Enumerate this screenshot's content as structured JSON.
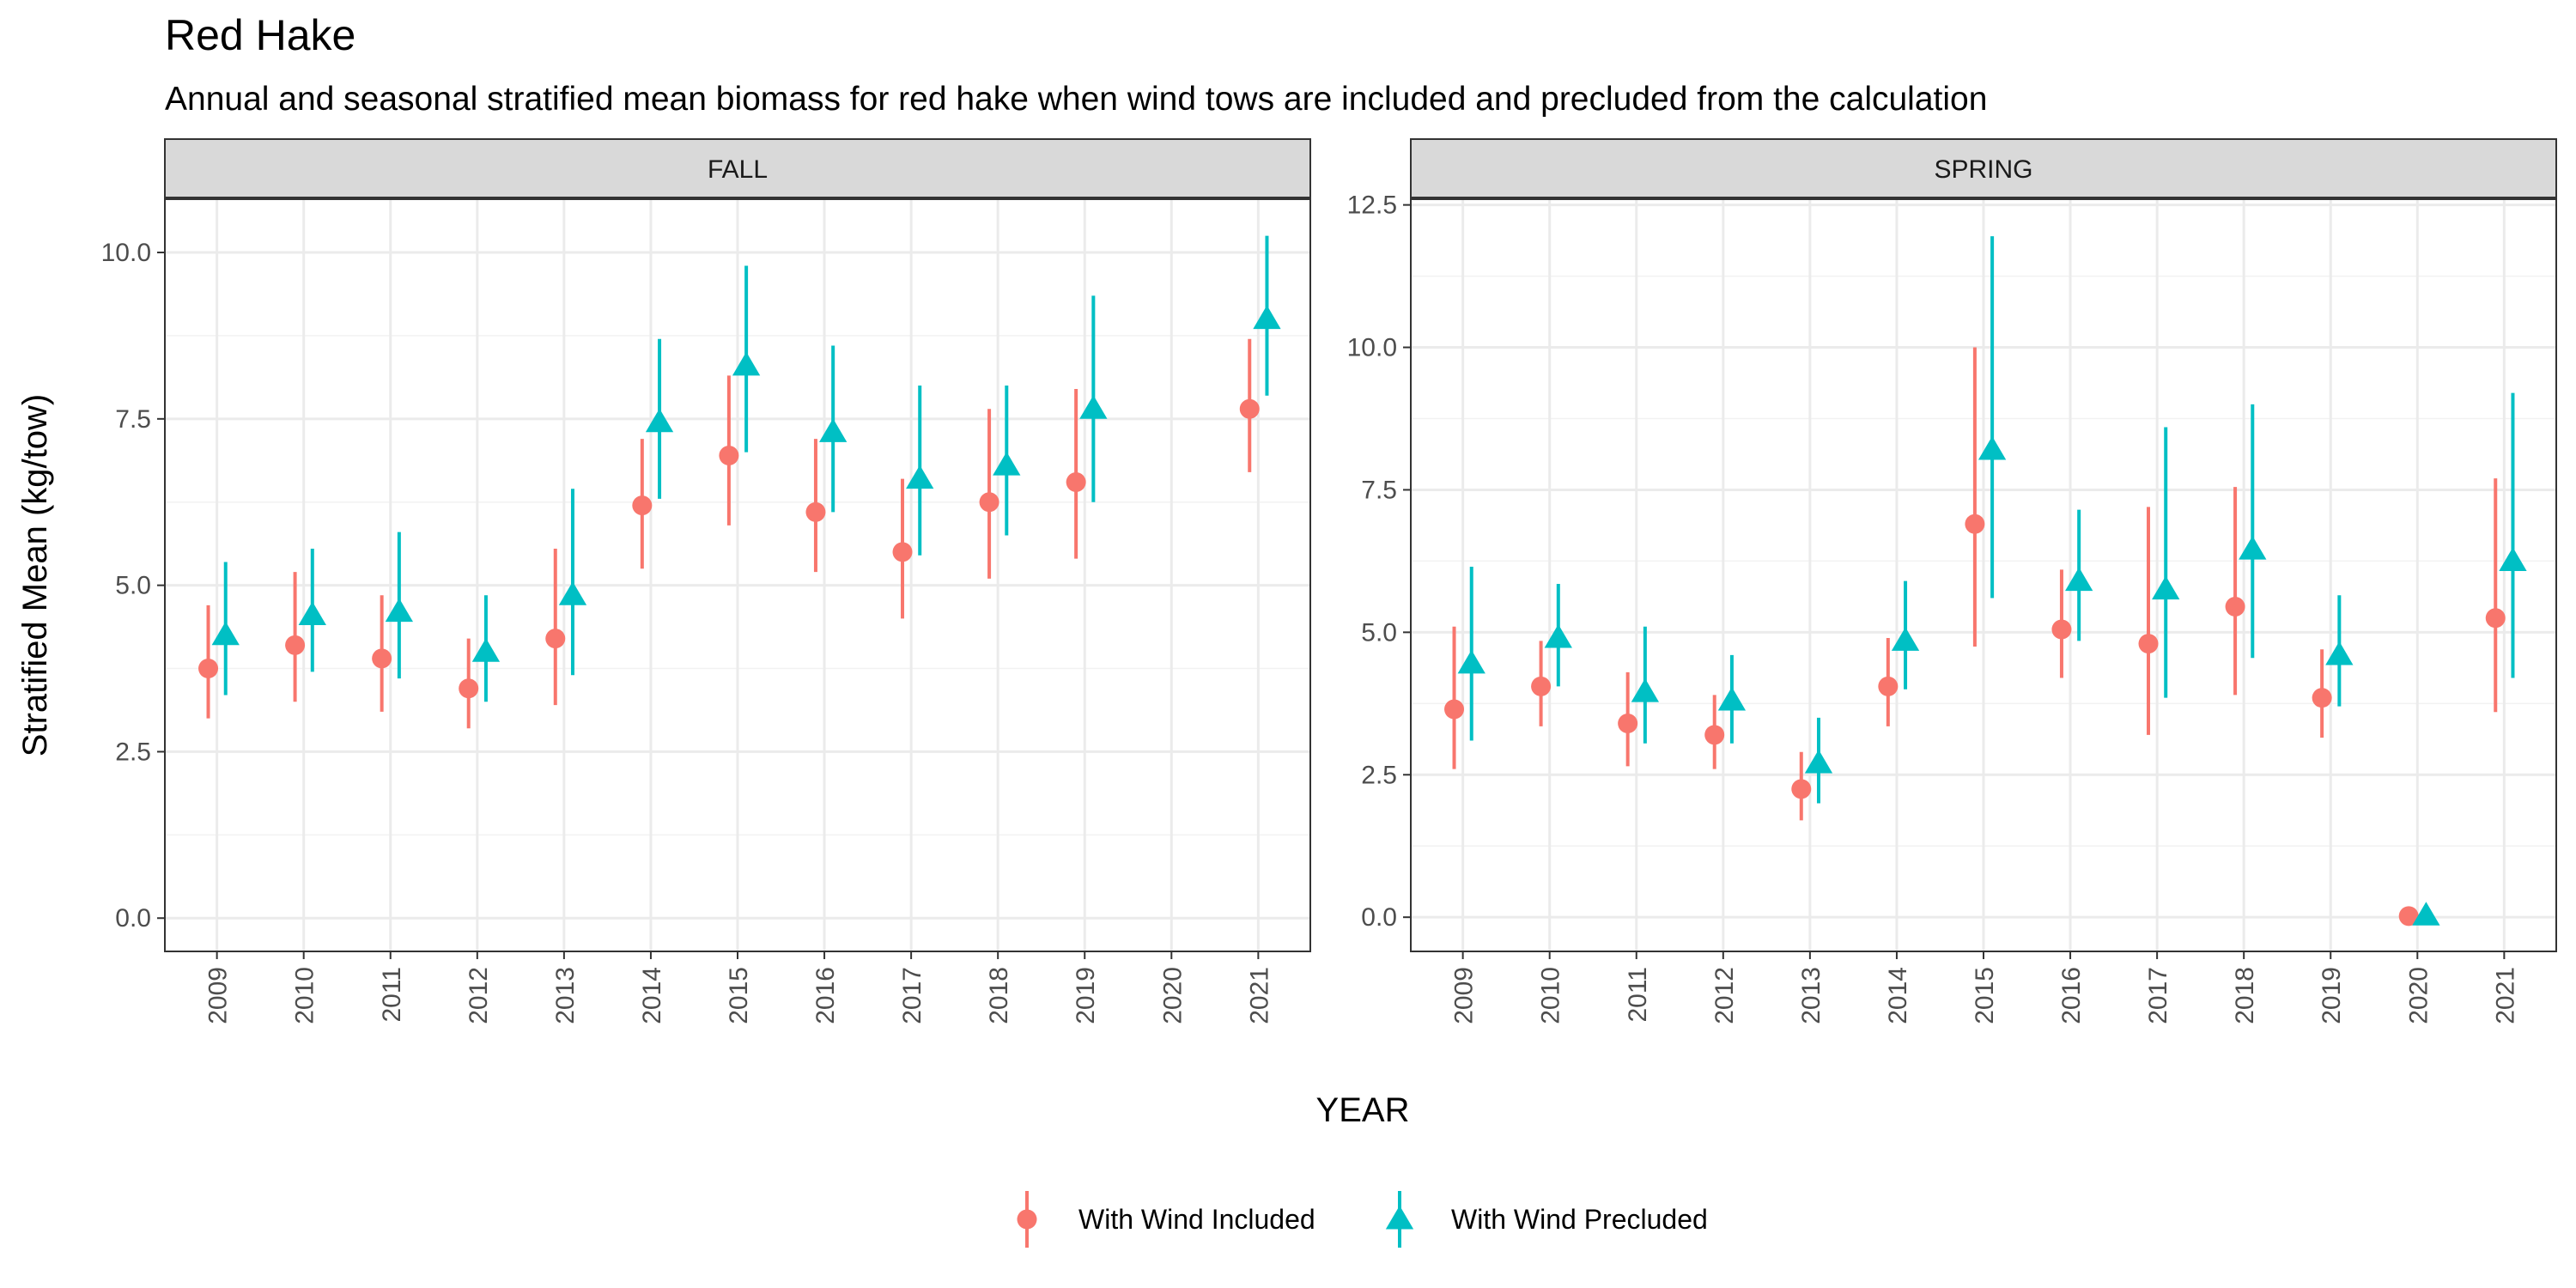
{
  "title": "Red Hake",
  "subtitle": "Annual and seasonal stratified mean biomass for red hake when wind tows are included and precluded from the calculation",
  "xlabel": "YEAR",
  "ylabel": "Stratified Mean (kg/tow)",
  "legend": {
    "position": "bottom",
    "items": [
      {
        "label": "With Wind Included",
        "color": "#F8766D",
        "shape": "circle"
      },
      {
        "label": "With Wind Precluded",
        "color": "#00BFC4",
        "shape": "triangle"
      }
    ]
  },
  "chart_data": [
    {
      "type": "scatter",
      "panel": "FALL",
      "categories": [
        "2009",
        "2010",
        "2011",
        "2012",
        "2013",
        "2014",
        "2015",
        "2016",
        "2017",
        "2018",
        "2019",
        "2020",
        "2021"
      ],
      "ylim": [
        -0.5,
        10.8
      ],
      "yticks": [
        0.0,
        2.5,
        5.0,
        7.5,
        10.0
      ],
      "ytick_labels": [
        "0.0",
        "2.5",
        "5.0",
        "7.5",
        "10.0"
      ],
      "grid": true,
      "series": [
        {
          "name": "With Wind Included",
          "values": [
            3.75,
            4.1,
            3.9,
            3.45,
            4.2,
            6.2,
            6.95,
            6.1,
            5.5,
            6.25,
            6.55,
            null,
            7.65
          ],
          "lower": [
            3.0,
            3.25,
            3.1,
            2.85,
            3.2,
            5.25,
            5.9,
            5.2,
            4.5,
            5.1,
            5.4,
            null,
            6.7
          ],
          "upper": [
            4.7,
            5.2,
            4.85,
            4.2,
            5.55,
            7.2,
            8.15,
            7.2,
            6.6,
            7.65,
            7.95,
            null,
            8.7
          ]
        },
        {
          "name": "With Wind Precluded",
          "values": [
            4.25,
            4.55,
            4.6,
            4.0,
            4.85,
            7.45,
            8.3,
            7.3,
            6.6,
            6.8,
            7.65,
            null,
            9.0
          ],
          "lower": [
            3.35,
            3.7,
            3.6,
            3.25,
            3.65,
            6.3,
            7.0,
            6.1,
            5.45,
            5.75,
            6.25,
            null,
            7.85
          ],
          "upper": [
            5.35,
            5.55,
            5.8,
            4.85,
            6.45,
            8.7,
            9.8,
            8.6,
            8.0,
            8.0,
            9.35,
            null,
            10.25
          ]
        }
      ]
    },
    {
      "type": "scatter",
      "panel": "SPRING",
      "categories": [
        "2009",
        "2010",
        "2011",
        "2012",
        "2013",
        "2014",
        "2015",
        "2016",
        "2017",
        "2018",
        "2019",
        "2020",
        "2021"
      ],
      "ylim": [
        -0.6,
        12.6
      ],
      "yticks": [
        0.0,
        2.5,
        5.0,
        7.5,
        10.0,
        12.5
      ],
      "ytick_labels": [
        "0.0",
        "2.5",
        "5.0",
        "7.5",
        "10.0",
        "12.5"
      ],
      "grid": true,
      "series": [
        {
          "name": "With Wind Included",
          "values": [
            3.65,
            4.05,
            3.4,
            3.2,
            2.25,
            4.05,
            6.9,
            5.05,
            4.8,
            5.45,
            3.85,
            0.02,
            5.25
          ],
          "lower": [
            2.6,
            3.35,
            2.65,
            2.6,
            1.7,
            3.35,
            4.75,
            4.2,
            3.2,
            3.9,
            3.15,
            0.0,
            3.6
          ],
          "upper": [
            5.1,
            4.85,
            4.3,
            3.9,
            2.9,
            4.9,
            10.0,
            6.1,
            7.2,
            7.55,
            4.7,
            0.05,
            7.7
          ]
        },
        {
          "name": "With Wind Precluded",
          "values": [
            4.45,
            4.9,
            3.95,
            3.8,
            2.7,
            4.85,
            8.2,
            5.9,
            5.75,
            6.45,
            4.6,
            0.03,
            6.25
          ],
          "lower": [
            3.1,
            4.05,
            3.05,
            3.05,
            2.0,
            4.0,
            5.6,
            4.85,
            3.85,
            4.55,
            3.7,
            0.0,
            4.2
          ],
          "upper": [
            6.15,
            5.85,
            5.1,
            4.6,
            3.5,
            5.9,
            11.95,
            7.15,
            8.6,
            9.0,
            5.65,
            0.07,
            9.2
          ]
        }
      ]
    }
  ]
}
